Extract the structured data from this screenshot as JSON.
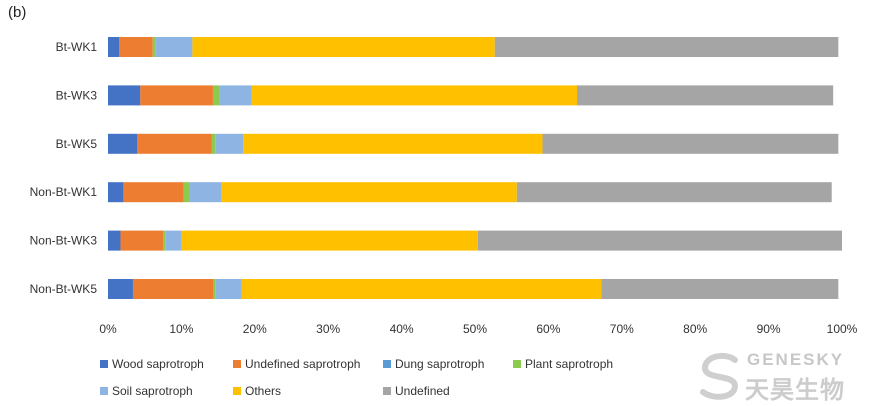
{
  "panel_label": "(b)",
  "chart_data": {
    "type": "bar",
    "orientation": "horizontal",
    "stacked": "percent",
    "categories": [
      "Bt-WK1",
      "Bt-WK3",
      "Bt-WK5",
      "Non-Bt-WK1",
      "Non-Bt-WK3",
      "Non-Bt-WK5"
    ],
    "series": [
      {
        "name": "Wood saprotroph",
        "color": "#4472C4",
        "values": [
          1.5,
          4.4,
          4.0,
          2.1,
          1.7,
          3.4
        ]
      },
      {
        "name": "Undefined saprotroph",
        "color": "#ED7D31",
        "values": [
          4.6,
          9.9,
          10.1,
          8.2,
          5.8,
          11.0
        ]
      },
      {
        "name": "Dung saprotroph",
        "color": "#5B9BD5",
        "values": [
          0.0,
          0.0,
          0.0,
          0.0,
          0.0,
          0.0
        ]
      },
      {
        "name": "Plant saprotroph",
        "color": "#8CCB50",
        "values": [
          0.4,
          0.9,
          0.5,
          0.8,
          0.3,
          0.2
        ]
      },
      {
        "name": "Soil saprotroph",
        "color": "#8EB4E3",
        "values": [
          5.0,
          4.4,
          3.8,
          4.3,
          2.2,
          3.6
        ]
      },
      {
        "name": "Others",
        "color": "#FFC000",
        "values": [
          41.2,
          44.3,
          40.8,
          40.3,
          40.4,
          49.0
        ]
      },
      {
        "name": "Undefined",
        "color": "#A5A5A5",
        "values": [
          46.8,
          34.9,
          40.3,
          42.9,
          49.6,
          32.3
        ]
      }
    ],
    "extra_marks": [
      {
        "series": "Undefined saprotroph",
        "note": "thin dung/plant sliver",
        "color": "#5B9BD5"
      }
    ],
    "xlim": [
      0,
      100
    ],
    "xticks": [
      "0%",
      "10%",
      "20%",
      "30%",
      "40%",
      "50%",
      "60%",
      "70%",
      "80%",
      "90%",
      "100%"
    ],
    "grid": false,
    "legend": {
      "position": "bottom",
      "rows": [
        [
          "Wood saprotroph",
          "Undefined saprotroph",
          "Dung saprotroph",
          "Plant saprotroph"
        ],
        [
          "Soil saprotroph",
          "Others",
          "Undefined"
        ]
      ]
    }
  },
  "watermark": {
    "en": "GENESKY",
    "cn": "天昊生物"
  }
}
